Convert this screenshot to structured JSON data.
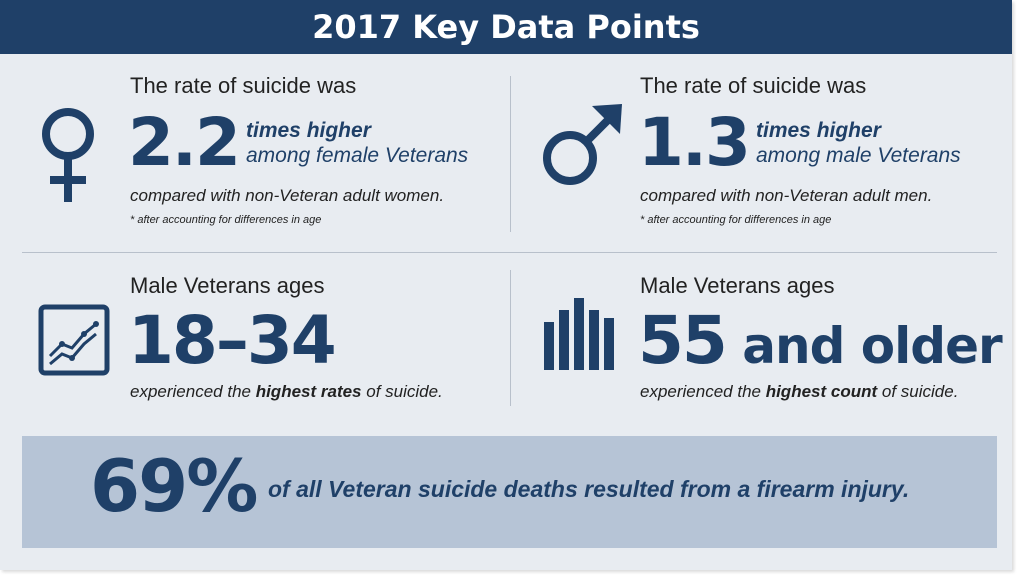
{
  "header": {
    "title": "2017 Key Data Points"
  },
  "female": {
    "lead": "The rate of suicide was",
    "value": "2.2",
    "qual_line1": "times higher",
    "qual_line2": "among female Veterans",
    "comparison": "compared with non-Veteran adult women.",
    "note": "* after accounting for differences in age",
    "icon": "female-symbol-icon"
  },
  "male": {
    "lead": "The rate of suicide was",
    "value": "1.3",
    "qual_line1": "times higher",
    "qual_line2": "among male Veterans",
    "comparison": "compared with non-Veteran adult men.",
    "note": "* after accounting for differences in age",
    "icon": "male-symbol-icon"
  },
  "ages_rate": {
    "lead": "Male Veterans ages",
    "value": "18–34",
    "text_before": "experienced the ",
    "text_bold": "highest rates",
    "text_after": " of suicide.",
    "icon": "line-chart-icon"
  },
  "ages_count": {
    "lead": "Male Veterans ages",
    "value_num": "55",
    "value_rest": " and older",
    "text_before": "experienced the ",
    "text_bold": "highest count",
    "text_after": " of suicide.",
    "icon": "bar-chart-icon"
  },
  "footer": {
    "value": "69%",
    "text": "of all Veteran suicide deaths resulted from a firearm injury."
  },
  "colors": {
    "navy": "#1f4068",
    "panel": "#e8ecf1",
    "footer_bg": "#b6c4d6"
  }
}
